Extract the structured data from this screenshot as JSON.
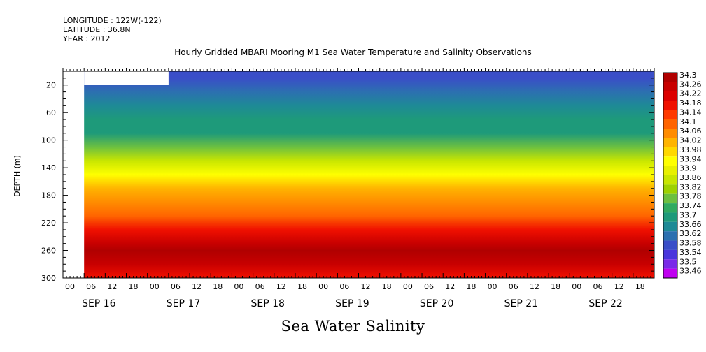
{
  "header": {
    "longitude": "LONGITUDE : 122W(-122)",
    "latitude": "LATITUDE : 36.8N",
    "year": "YEAR : 2012"
  },
  "chart_data": {
    "type": "heatmap",
    "title": "Hourly Gridded MBARI Mooring M1 Sea Water Temperature and Salinity Observations",
    "main_title": "Sea Water Salinity",
    "ylabel": "DEPTH (m)",
    "xlabel": "",
    "x_range": [
      "2012-09-16T00:00",
      "2012-09-23T00:00"
    ],
    "ylim": [
      300,
      0
    ],
    "y_ticks": [
      20,
      60,
      100,
      140,
      180,
      220,
      260,
      300
    ],
    "x_hour_ticks": [
      "00",
      "06",
      "12",
      "18",
      "00",
      "06",
      "12",
      "18",
      "00",
      "06",
      "12",
      "18",
      "00",
      "06",
      "12",
      "18",
      "00",
      "06",
      "12",
      "18",
      "00",
      "06",
      "12",
      "18",
      "00",
      "06",
      "12",
      "18"
    ],
    "day_labels": [
      "SEP 16",
      "SEP 17",
      "SEP 18",
      "SEP 19",
      "SEP 20",
      "SEP 21",
      "SEP 22"
    ],
    "data_start": "2012-09-16T06:00",
    "missing_block": {
      "start": "2012-09-16T06:00",
      "end": "2012-09-17T06:00",
      "depth_top": 0,
      "depth_bottom": 20
    },
    "colorbar": {
      "levels": [
        "34.3",
        "34.26",
        "34.22",
        "34.18",
        "34.14",
        "34.1",
        "34.06",
        "34.02",
        "33.98",
        "33.94",
        "33.9",
        "33.86",
        "33.82",
        "33.78",
        "33.74",
        "33.7",
        "33.66",
        "33.62",
        "33.58",
        "33.54",
        "33.5",
        "33.46"
      ],
      "colors": [
        "#b00000",
        "#c80000",
        "#dc0000",
        "#f01000",
        "#ff3a00",
        "#ff6400",
        "#ff8c00",
        "#ffb400",
        "#ffd800",
        "#ffff00",
        "#e8f000",
        "#c8e600",
        "#9ed200",
        "#6cc040",
        "#30aa60",
        "#1e9a7a",
        "#1e8a96",
        "#2c70b0",
        "#3a4ec8",
        "#4a36dc",
        "#7a2ae8",
        "#c000f0"
      ],
      "units": ""
    },
    "depth_profile": [
      {
        "depth": 10,
        "salinity": 33.56
      },
      {
        "depth": 30,
        "salinity": 33.6
      },
      {
        "depth": 50,
        "salinity": 33.63
      },
      {
        "depth": 70,
        "salinity": 33.66
      },
      {
        "depth": 90,
        "salinity": 33.69
      },
      {
        "depth": 110,
        "salinity": 33.74
      },
      {
        "depth": 130,
        "salinity": 33.84
      },
      {
        "depth": 150,
        "salinity": 33.93
      },
      {
        "depth": 170,
        "salinity": 33.98
      },
      {
        "depth": 190,
        "salinity": 34.02
      },
      {
        "depth": 210,
        "salinity": 34.08
      },
      {
        "depth": 230,
        "salinity": 34.16
      },
      {
        "depth": 250,
        "salinity": 34.24
      },
      {
        "depth": 260,
        "salinity": 34.27
      },
      {
        "depth": 280,
        "salinity": 34.22
      },
      {
        "depth": 300,
        "salinity": 34.16
      }
    ]
  }
}
